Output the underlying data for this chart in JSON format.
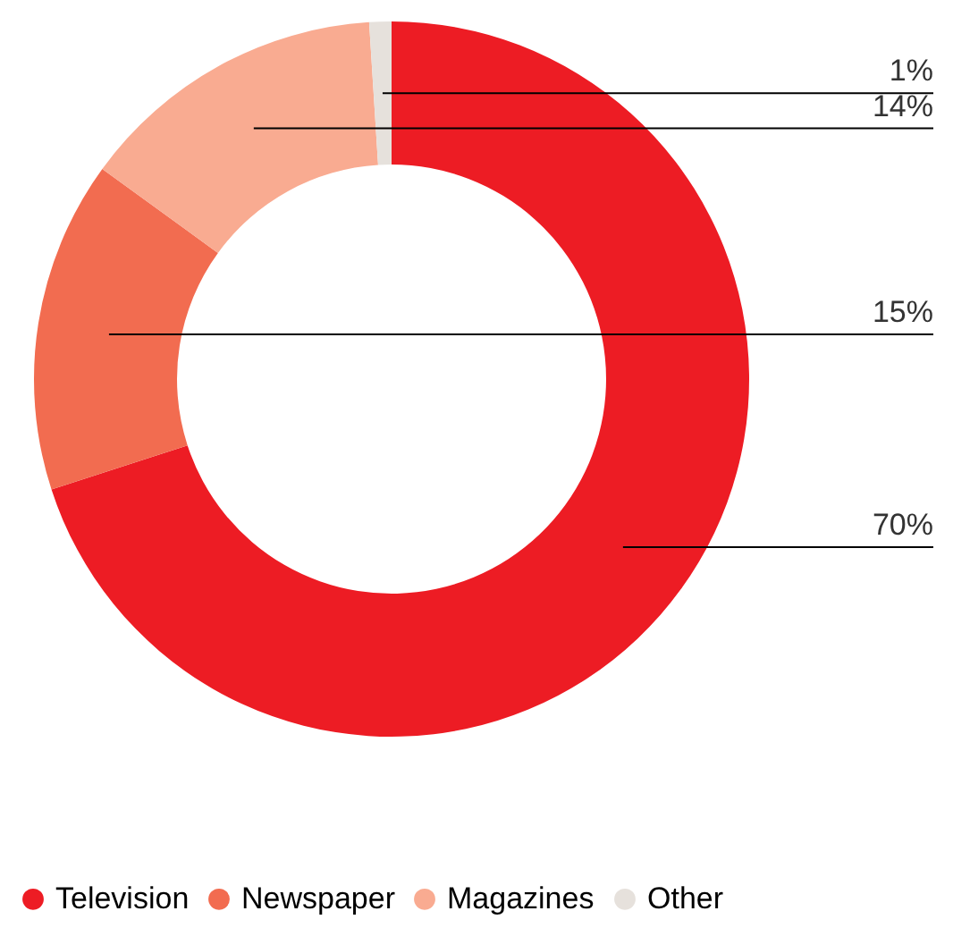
{
  "chart_data": {
    "type": "donut",
    "categories": [
      "Television",
      "Newspaper",
      "Magazines",
      "Other"
    ],
    "values": [
      70,
      15,
      14,
      1
    ],
    "colors": [
      "#ed1c24",
      "#f26c50",
      "#f9ab91",
      "#e6e1dc"
    ],
    "value_labels": [
      "70%",
      "15%",
      "14%",
      "1%"
    ],
    "legend": "bottom left"
  }
}
